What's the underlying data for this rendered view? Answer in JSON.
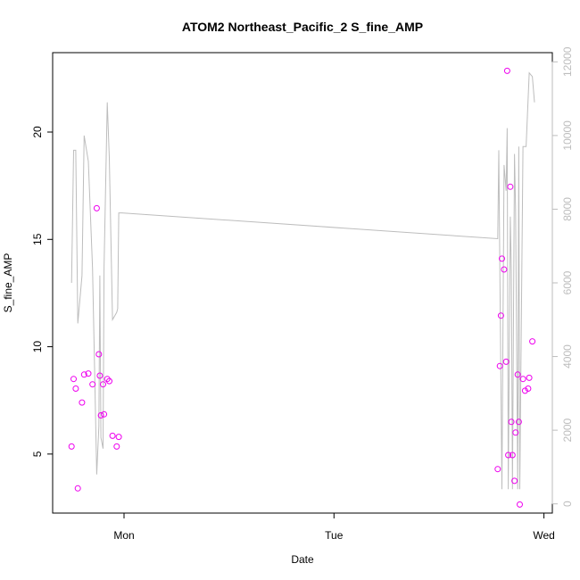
{
  "chart_data": {
    "type": "scatter",
    "title": "ATOM2 Northeast_Pacific_2 S_fine_AMP",
    "xlabel": "Date",
    "ylabel": "S_fine_AMP",
    "x_ticks": [
      {
        "value": 0.0,
        "label": "Mon"
      },
      {
        "value": 1.0,
        "label": "Tue"
      },
      {
        "value": 2.0,
        "label": "Wed"
      }
    ],
    "xlim": [
      -0.34,
      2.04
    ],
    "ylim": [
      2.25,
      23.7
    ],
    "y_ticks": [
      5,
      10,
      15,
      20
    ],
    "y2lim": [
      -250,
      12250
    ],
    "y2_ticks": [
      0,
      2000,
      4000,
      6000,
      8000,
      10000,
      12000
    ],
    "point_color": "#ee00ee",
    "line_color": "#bdbdbd",
    "grid": false,
    "points": [
      [
        -0.25,
        5.35
      ],
      [
        -0.24,
        8.5
      ],
      [
        -0.23,
        8.05
      ],
      [
        -0.22,
        3.4
      ],
      [
        -0.2,
        7.4
      ],
      [
        -0.19,
        8.7
      ],
      [
        -0.17,
        8.75
      ],
      [
        -0.15,
        8.25
      ],
      [
        -0.13,
        16.45
      ],
      [
        -0.12,
        9.65
      ],
      [
        -0.115,
        8.65
      ],
      [
        -0.11,
        6.8
      ],
      [
        -0.1,
        8.25
      ],
      [
        -0.095,
        6.85
      ],
      [
        -0.08,
        8.5
      ],
      [
        -0.07,
        8.4
      ],
      [
        -0.055,
        5.85
      ],
      [
        -0.035,
        5.35
      ],
      [
        -0.025,
        5.8
      ],
      [
        1.78,
        4.3
      ],
      [
        1.79,
        9.1
      ],
      [
        1.795,
        11.45
      ],
      [
        1.8,
        14.1
      ],
      [
        1.81,
        13.6
      ],
      [
        1.82,
        9.3
      ],
      [
        1.825,
        22.85
      ],
      [
        1.83,
        4.95
      ],
      [
        1.84,
        17.45
      ],
      [
        1.845,
        6.5
      ],
      [
        1.85,
        4.95
      ],
      [
        1.86,
        3.75
      ],
      [
        1.865,
        6.0
      ],
      [
        1.875,
        8.7
      ],
      [
        1.88,
        6.5
      ],
      [
        1.885,
        2.65
      ],
      [
        1.9,
        8.5
      ],
      [
        1.91,
        7.95
      ],
      [
        1.925,
        8.05
      ],
      [
        1.93,
        8.55
      ],
      [
        1.945,
        10.25
      ]
    ],
    "series": [
      {
        "axis": "right",
        "x": [
          -0.25,
          -0.24,
          -0.23,
          -0.22,
          -0.2,
          -0.19,
          -0.17,
          -0.15,
          -0.13,
          -0.12,
          -0.115,
          -0.11,
          -0.1,
          -0.095,
          -0.08,
          -0.07,
          -0.055,
          -0.035,
          -0.03,
          -0.025,
          -0.01,
          1.78,
          1.785,
          1.79,
          1.8,
          1.81,
          1.82,
          1.825,
          1.83,
          1.84,
          1.845,
          1.85,
          1.86,
          1.865,
          1.875,
          1.88,
          1.885,
          1.9,
          1.915,
          1.93,
          1.945,
          1.955
        ],
        "y": [
          6000,
          9600,
          9600,
          4900,
          6200,
          10000,
          9300,
          6400,
          800,
          2100,
          6200,
          1800,
          1500,
          6400,
          10900,
          9400,
          5000,
          5200,
          5300,
          7900,
          7900,
          7200,
          9600,
          6300,
          400,
          9200,
          8500,
          10200,
          400,
          7800,
          6300,
          400,
          9500,
          8000,
          400,
          9700,
          400,
          9700,
          9700,
          11700,
          11600,
          10900
        ]
      }
    ]
  }
}
